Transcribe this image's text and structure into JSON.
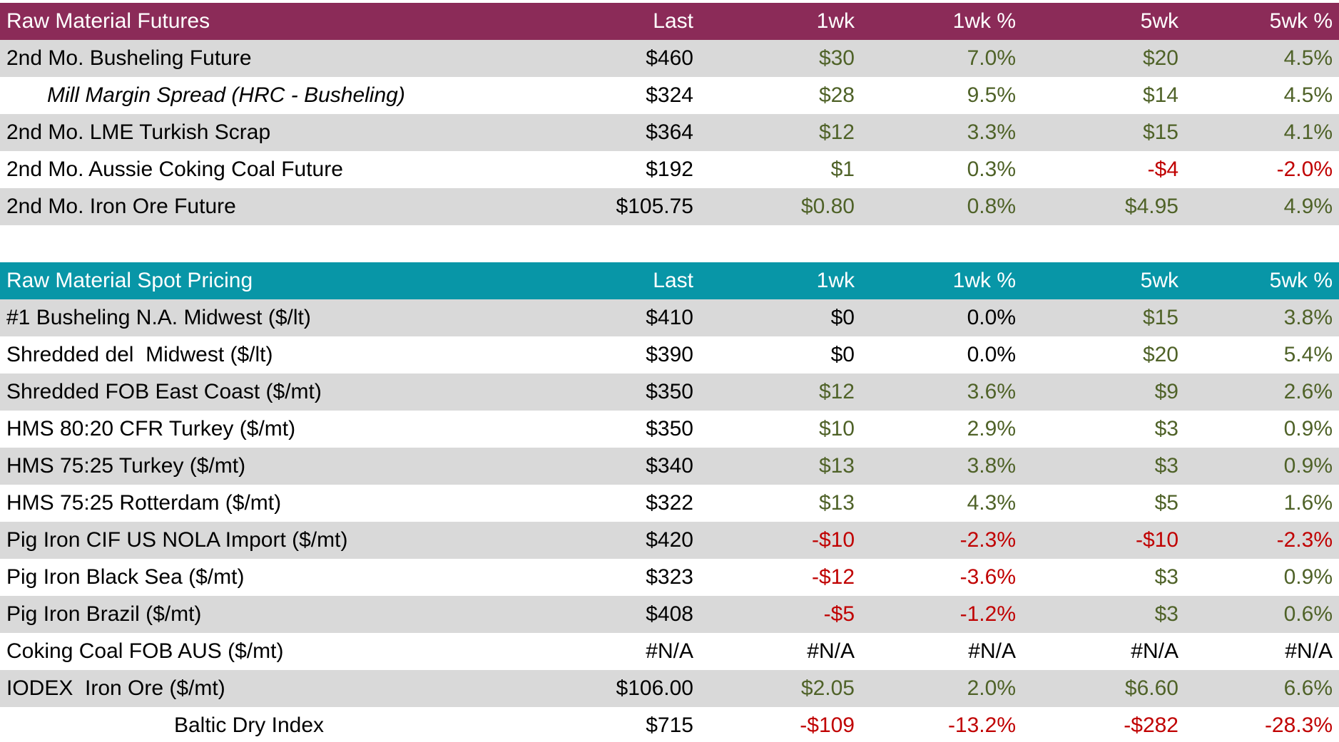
{
  "colors": {
    "futures_header_bg": "#8B2B58",
    "spot_header_bg": "#0896A7",
    "header_text": "#FFFFFF",
    "row_alt_bg": "#D9D9D9",
    "row_bg": "#FFFFFF",
    "positive": "#4F6228",
    "negative": "#C00000",
    "neutral": "#000000"
  },
  "chart_data": [
    {
      "type": "table",
      "title": "Raw Material Futures",
      "header_bg_key": "futures_header_bg",
      "columns": [
        "Last",
        "1wk",
        "1wk %",
        "5wk",
        "5wk %"
      ],
      "rows": [
        {
          "label": "2nd Mo. Busheling Future",
          "style": "normal",
          "cells": [
            {
              "text": "$460",
              "color": "neutral"
            },
            {
              "text": "$30",
              "color": "positive"
            },
            {
              "text": "7.0%",
              "color": "positive"
            },
            {
              "text": "$20",
              "color": "positive"
            },
            {
              "text": "4.5%",
              "color": "positive"
            }
          ]
        },
        {
          "label": "Mill Margin Spread (HRC - Busheling)",
          "style": "indent-italic",
          "cells": [
            {
              "text": "$324",
              "color": "neutral"
            },
            {
              "text": "$28",
              "color": "positive"
            },
            {
              "text": "9.5%",
              "color": "positive"
            },
            {
              "text": "$14",
              "color": "positive"
            },
            {
              "text": "4.5%",
              "color": "positive"
            }
          ]
        },
        {
          "label": "2nd Mo. LME Turkish Scrap",
          "style": "normal",
          "cells": [
            {
              "text": "$364",
              "color": "neutral"
            },
            {
              "text": "$12",
              "color": "positive"
            },
            {
              "text": "3.3%",
              "color": "positive"
            },
            {
              "text": "$15",
              "color": "positive"
            },
            {
              "text": "4.1%",
              "color": "positive"
            }
          ]
        },
        {
          "label": "2nd Mo. Aussie Coking Coal Future",
          "style": "normal",
          "cells": [
            {
              "text": "$192",
              "color": "neutral"
            },
            {
              "text": "$1",
              "color": "positive"
            },
            {
              "text": "0.3%",
              "color": "positive"
            },
            {
              "text": "-$4",
              "color": "negative"
            },
            {
              "text": "-2.0%",
              "color": "negative"
            }
          ]
        },
        {
          "label": "2nd Mo. Iron Ore Future",
          "style": "normal",
          "cells": [
            {
              "text": "$105.75",
              "color": "neutral"
            },
            {
              "text": "$0.80",
              "color": "positive"
            },
            {
              "text": "0.8%",
              "color": "positive"
            },
            {
              "text": "$4.95",
              "color": "positive"
            },
            {
              "text": "4.9%",
              "color": "positive"
            }
          ]
        }
      ]
    },
    {
      "type": "table",
      "title": "Raw Material Spot Pricing",
      "header_bg_key": "spot_header_bg",
      "columns": [
        "Last",
        "1wk",
        "1wk %",
        "5wk",
        "5wk %"
      ],
      "rows": [
        {
          "label": "#1 Busheling N.A. Midwest ($/lt)",
          "style": "normal",
          "cells": [
            {
              "text": "$410",
              "color": "neutral"
            },
            {
              "text": "$0",
              "color": "neutral"
            },
            {
              "text": "0.0%",
              "color": "neutral"
            },
            {
              "text": "$15",
              "color": "positive"
            },
            {
              "text": "3.8%",
              "color": "positive"
            }
          ]
        },
        {
          "label": "Shredded del  Midwest ($/lt)",
          "style": "normal",
          "cells": [
            {
              "text": "$390",
              "color": "neutral"
            },
            {
              "text": "$0",
              "color": "neutral"
            },
            {
              "text": "0.0%",
              "color": "neutral"
            },
            {
              "text": "$20",
              "color": "positive"
            },
            {
              "text": "5.4%",
              "color": "positive"
            }
          ]
        },
        {
          "label": "Shredded FOB East Coast ($/mt)",
          "style": "normal",
          "cells": [
            {
              "text": "$350",
              "color": "neutral"
            },
            {
              "text": "$12",
              "color": "positive"
            },
            {
              "text": "3.6%",
              "color": "positive"
            },
            {
              "text": "$9",
              "color": "positive"
            },
            {
              "text": "2.6%",
              "color": "positive"
            }
          ]
        },
        {
          "label": "HMS 80:20 CFR Turkey ($/mt)",
          "style": "normal",
          "cells": [
            {
              "text": "$350",
              "color": "neutral"
            },
            {
              "text": "$10",
              "color": "positive"
            },
            {
              "text": "2.9%",
              "color": "positive"
            },
            {
              "text": "$3",
              "color": "positive"
            },
            {
              "text": "0.9%",
              "color": "positive"
            }
          ]
        },
        {
          "label": "HMS 75:25 Turkey ($/mt)",
          "style": "normal",
          "cells": [
            {
              "text": "$340",
              "color": "neutral"
            },
            {
              "text": "$13",
              "color": "positive"
            },
            {
              "text": "3.8%",
              "color": "positive"
            },
            {
              "text": "$3",
              "color": "positive"
            },
            {
              "text": "0.9%",
              "color": "positive"
            }
          ]
        },
        {
          "label": "HMS 75:25 Rotterdam ($/mt)",
          "style": "normal",
          "cells": [
            {
              "text": "$322",
              "color": "neutral"
            },
            {
              "text": "$13",
              "color": "positive"
            },
            {
              "text": "4.3%",
              "color": "positive"
            },
            {
              "text": "$5",
              "color": "positive"
            },
            {
              "text": "1.6%",
              "color": "positive"
            }
          ]
        },
        {
          "label": "Pig Iron CIF US NOLA Import ($/mt)",
          "style": "normal",
          "cells": [
            {
              "text": "$420",
              "color": "neutral"
            },
            {
              "text": "-$10",
              "color": "negative"
            },
            {
              "text": "-2.3%",
              "color": "negative"
            },
            {
              "text": "-$10",
              "color": "negative"
            },
            {
              "text": "-2.3%",
              "color": "negative"
            }
          ]
        },
        {
          "label": "Pig Iron Black Sea ($/mt)",
          "style": "normal",
          "cells": [
            {
              "text": "$323",
              "color": "neutral"
            },
            {
              "text": "-$12",
              "color": "negative"
            },
            {
              "text": "-3.6%",
              "color": "negative"
            },
            {
              "text": "$3",
              "color": "positive"
            },
            {
              "text": "0.9%",
              "color": "positive"
            }
          ]
        },
        {
          "label": "Pig Iron Brazil ($/mt)",
          "style": "normal",
          "cells": [
            {
              "text": "$408",
              "color": "neutral"
            },
            {
              "text": "-$5",
              "color": "negative"
            },
            {
              "text": "-1.2%",
              "color": "negative"
            },
            {
              "text": "$3",
              "color": "positive"
            },
            {
              "text": "0.6%",
              "color": "positive"
            }
          ]
        },
        {
          "label": "Coking Coal FOB AUS ($/mt)",
          "style": "normal",
          "cells": [
            {
              "text": "#N/A",
              "color": "neutral"
            },
            {
              "text": "#N/A",
              "color": "neutral"
            },
            {
              "text": "#N/A",
              "color": "neutral"
            },
            {
              "text": "#N/A",
              "color": "neutral"
            },
            {
              "text": "#N/A",
              "color": "neutral"
            }
          ]
        },
        {
          "label": "IODEX  Iron Ore ($/mt)",
          "style": "normal",
          "cells": [
            {
              "text": "$106.00",
              "color": "neutral"
            },
            {
              "text": "$2.05",
              "color": "positive"
            },
            {
              "text": "2.0%",
              "color": "positive"
            },
            {
              "text": "$6.60",
              "color": "positive"
            },
            {
              "text": "6.6%",
              "color": "positive"
            }
          ]
        },
        {
          "label": "Baltic Dry Index",
          "style": "center",
          "cells": [
            {
              "text": "$715",
              "color": "neutral"
            },
            {
              "text": "-$109",
              "color": "negative"
            },
            {
              "text": "-13.2%",
              "color": "negative"
            },
            {
              "text": "-$282",
              "color": "negative"
            },
            {
              "text": "-28.3%",
              "color": "negative"
            }
          ]
        }
      ]
    }
  ]
}
